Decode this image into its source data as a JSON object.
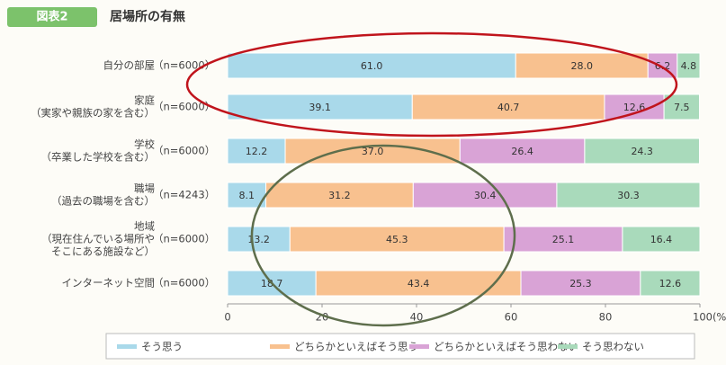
{
  "chart_data": {
    "type": "stacked_barh",
    "badge": "図表2",
    "title": "居場所の有無",
    "categories": [
      [
        "自分の部屋"
      ],
      [
        "家庭",
        "（実家や親族の家を含む）"
      ],
      [
        "学校",
        "（卒業した学校を含む）"
      ],
      [
        "職場",
        "（過去の職場を含む）"
      ],
      [
        "地域",
        "（現在住んでいる場所や",
        "そこにある施設など）"
      ],
      [
        "インターネット空間"
      ]
    ],
    "n_labels": [
      "（n=6000）",
      "（n=6000）",
      "（n=6000）",
      "（n=4243）",
      "（n=6000）",
      "（n=6000）"
    ],
    "series": [
      {
        "name": "そう思う",
        "color": "#a9d9ea",
        "values": [
          61.0,
          39.1,
          12.2,
          8.1,
          13.2,
          18.7
        ],
        "value_labels": [
          "61.0",
          "39.1",
          "12.2",
          "8.1",
          "13.2",
          "18.7"
        ]
      },
      {
        "name": "どちらかといえばそう思う",
        "color": "#f8c18f",
        "values": [
          28.0,
          40.7,
          37.0,
          31.2,
          45.3,
          43.4
        ],
        "value_labels": [
          "28.0",
          "40.7",
          "37.0",
          "31.2",
          "45.3",
          "43.4"
        ]
      },
      {
        "name": "どちらかといえばそう思わない",
        "color": "#d9a3d6",
        "values": [
          6.2,
          12.6,
          26.4,
          30.4,
          25.1,
          25.3
        ],
        "value_labels": [
          "6.2",
          "12.6",
          "26.4",
          "30.4",
          "25.1",
          "25.3"
        ]
      },
      {
        "name": "そう思わない",
        "color": "#a9dabb",
        "values": [
          4.8,
          7.5,
          24.3,
          30.3,
          16.4,
          12.6
        ],
        "value_labels": [
          "4.8",
          "7.5",
          "24.3",
          "30.3",
          "16.4",
          "12.6"
        ]
      }
    ],
    "xlim": [
      0,
      100
    ],
    "xticks": [
      0,
      20,
      40,
      60,
      80,
      {
        "value": 100,
        "label": "100(%)"
      }
    ],
    "grid": false
  }
}
